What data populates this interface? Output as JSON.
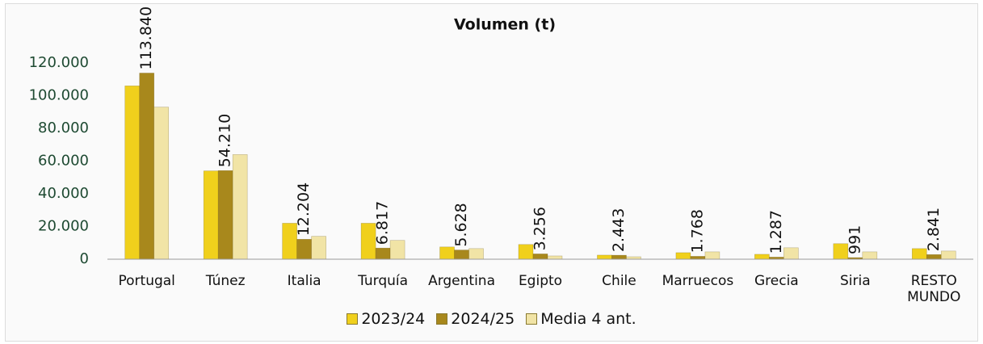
{
  "chart_data": {
    "type": "bar",
    "title": "Volumen (t)",
    "categories": [
      "Portugal",
      "Túnez",
      "Italia",
      "Turquía",
      "Argentina",
      "Egipto",
      "Chile",
      "Marruecos",
      "Grecia",
      "Siria",
      "RESTO MUNDO"
    ],
    "series": [
      {
        "name": "2023/24",
        "color": "#f0d01c",
        "values": [
          106000,
          54000,
          22000,
          22000,
          7500,
          9000,
          2500,
          4000,
          3000,
          9500,
          6500
        ]
      },
      {
        "name": "2024/25",
        "color": "#a8881c",
        "values": [
          113840,
          54210,
          12204,
          6817,
          5628,
          3256,
          2443,
          1768,
          1287,
          991,
          2841
        ],
        "value_labels": [
          "113.840",
          "54.210",
          "12.204",
          "6.817",
          "5.628",
          "3.256",
          "2.443",
          "1.768",
          "1.287",
          "991",
          "2.841"
        ]
      },
      {
        "name": "Media 4 ant.",
        "color": "#f1e4a6",
        "values": [
          93000,
          64000,
          14000,
          11500,
          6500,
          2000,
          1500,
          4500,
          7000,
          4500,
          5000
        ]
      }
    ],
    "ylim": [
      0,
      120000
    ],
    "yticks": [
      0,
      {
        "value": 20000,
        "label": "20.000"
      },
      {
        "value": 40000,
        "label": "40.000"
      },
      {
        "value": 60000,
        "label": "60.000"
      },
      {
        "value": 80000,
        "label": "80.000"
      },
      {
        "value": 100000,
        "label": "100.000"
      },
      {
        "value": 120000,
        "label": "120.000"
      }
    ],
    "grid": false
  }
}
